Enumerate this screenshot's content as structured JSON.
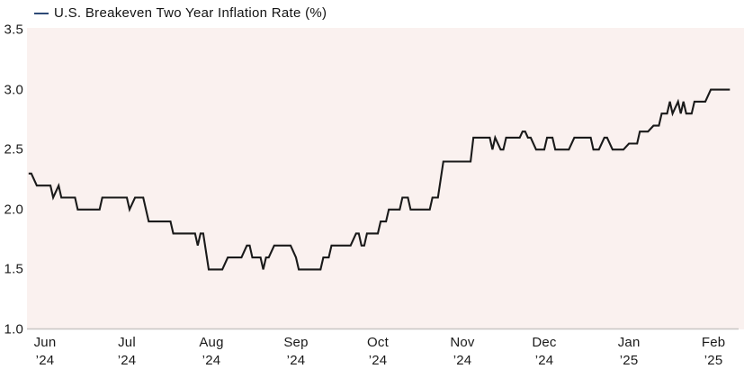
{
  "legend": {
    "label": "U.S. Breakeven Two Year Inflation Rate (%)"
  },
  "colors": {
    "line": "#1a1a1a",
    "legend_dash": "#2c4a76",
    "plot_bg": "#faf1ef",
    "baseline": "#c9c6c4",
    "text": "#1a1a1a",
    "page_bg": "#ffffff"
  },
  "chart_data": {
    "type": "line",
    "title": "U.S. Breakeven Two Year Inflation Rate (%)",
    "series_name": "U.S. Breakeven Two Year Inflation Rate (%)",
    "xlabel": "",
    "ylabel": "",
    "ylim": [
      1.0,
      3.5
    ],
    "yticks": [
      3.5,
      3.0,
      2.5,
      2.0,
      1.5,
      1.0
    ],
    "grid": false,
    "legend_position": "top-left",
    "line_style": "daily step-like line",
    "x_range": [
      "2024-05-26",
      "2025-02-07"
    ],
    "xticks": [
      {
        "month": "Jun",
        "year": "’24",
        "date": "2024-06-01"
      },
      {
        "month": "Jul",
        "year": "’24",
        "date": "2024-07-01"
      },
      {
        "month": "Aug",
        "year": "’24",
        "date": "2024-08-01"
      },
      {
        "month": "Sep",
        "year": "’24",
        "date": "2024-09-01"
      },
      {
        "month": "Oct",
        "year": "’24",
        "date": "2024-10-01"
      },
      {
        "month": "Nov",
        "year": "’24",
        "date": "2024-11-01"
      },
      {
        "month": "Dec",
        "year": "’24",
        "date": "2024-12-01"
      },
      {
        "month": "Jan",
        "year": "’25",
        "date": "2025-01-01"
      },
      {
        "month": "Feb",
        "year": "’25",
        "date": "2025-02-01"
      }
    ],
    "points": [
      [
        "2024-05-26",
        2.3
      ],
      [
        "2024-05-27",
        2.3
      ],
      [
        "2024-05-29",
        2.2
      ],
      [
        "2024-06-03",
        2.2
      ],
      [
        "2024-06-04",
        2.1
      ],
      [
        "2024-06-06",
        2.2
      ],
      [
        "2024-06-07",
        2.1
      ],
      [
        "2024-06-12",
        2.1
      ],
      [
        "2024-06-13",
        2.0
      ],
      [
        "2024-06-21",
        2.0
      ],
      [
        "2024-06-22",
        2.1
      ],
      [
        "2024-07-01",
        2.1
      ],
      [
        "2024-07-02",
        2.0
      ],
      [
        "2024-07-04",
        2.1
      ],
      [
        "2024-07-07",
        2.1
      ],
      [
        "2024-07-09",
        1.9
      ],
      [
        "2024-07-17",
        1.9
      ],
      [
        "2024-07-18",
        1.8
      ],
      [
        "2024-07-26",
        1.8
      ],
      [
        "2024-07-27",
        1.7
      ],
      [
        "2024-07-28",
        1.8
      ],
      [
        "2024-07-29",
        1.8
      ],
      [
        "2024-07-31",
        1.5
      ],
      [
        "2024-08-05",
        1.5
      ],
      [
        "2024-08-07",
        1.6
      ],
      [
        "2024-08-12",
        1.6
      ],
      [
        "2024-08-14",
        1.7
      ],
      [
        "2024-08-15",
        1.7
      ],
      [
        "2024-08-16",
        1.6
      ],
      [
        "2024-08-19",
        1.6
      ],
      [
        "2024-08-20",
        1.5
      ],
      [
        "2024-08-21",
        1.6
      ],
      [
        "2024-08-22",
        1.6
      ],
      [
        "2024-08-24",
        1.7
      ],
      [
        "2024-08-30",
        1.7
      ],
      [
        "2024-09-01",
        1.6
      ],
      [
        "2024-09-02",
        1.5
      ],
      [
        "2024-09-10",
        1.5
      ],
      [
        "2024-09-11",
        1.6
      ],
      [
        "2024-09-13",
        1.6
      ],
      [
        "2024-09-14",
        1.7
      ],
      [
        "2024-09-21",
        1.7
      ],
      [
        "2024-09-23",
        1.8
      ],
      [
        "2024-09-24",
        1.8
      ],
      [
        "2024-09-25",
        1.7
      ],
      [
        "2024-09-26",
        1.7
      ],
      [
        "2024-09-27",
        1.8
      ],
      [
        "2024-10-01",
        1.8
      ],
      [
        "2024-10-02",
        1.9
      ],
      [
        "2024-10-04",
        1.9
      ],
      [
        "2024-10-05",
        2.0
      ],
      [
        "2024-10-09",
        2.0
      ],
      [
        "2024-10-10",
        2.1
      ],
      [
        "2024-10-12",
        2.1
      ],
      [
        "2024-10-13",
        2.0
      ],
      [
        "2024-10-20",
        2.0
      ],
      [
        "2024-10-21",
        2.1
      ],
      [
        "2024-10-23",
        2.1
      ],
      [
        "2024-10-25",
        2.4
      ],
      [
        "2024-11-04",
        2.4
      ],
      [
        "2024-11-05",
        2.6
      ],
      [
        "2024-11-11",
        2.6
      ],
      [
        "2024-11-12",
        2.5
      ],
      [
        "2024-11-13",
        2.6
      ],
      [
        "2024-11-15",
        2.5
      ],
      [
        "2024-11-16",
        2.5
      ],
      [
        "2024-11-17",
        2.6
      ],
      [
        "2024-11-22",
        2.6
      ],
      [
        "2024-11-23",
        2.65
      ],
      [
        "2024-11-24",
        2.65
      ],
      [
        "2024-11-25",
        2.6
      ],
      [
        "2024-11-26",
        2.6
      ],
      [
        "2024-11-28",
        2.5
      ],
      [
        "2024-12-01",
        2.5
      ],
      [
        "2024-12-02",
        2.6
      ],
      [
        "2024-12-04",
        2.6
      ],
      [
        "2024-12-05",
        2.5
      ],
      [
        "2024-12-10",
        2.5
      ],
      [
        "2024-12-12",
        2.6
      ],
      [
        "2024-12-18",
        2.6
      ],
      [
        "2024-12-19",
        2.5
      ],
      [
        "2024-12-21",
        2.5
      ],
      [
        "2024-12-23",
        2.6
      ],
      [
        "2024-12-24",
        2.6
      ],
      [
        "2024-12-26",
        2.5
      ],
      [
        "2024-12-30",
        2.5
      ],
      [
        "2025-01-01",
        2.55
      ],
      [
        "2025-01-04",
        2.55
      ],
      [
        "2025-01-05",
        2.65
      ],
      [
        "2025-01-08",
        2.65
      ],
      [
        "2025-01-10",
        2.7
      ],
      [
        "2025-01-12",
        2.7
      ],
      [
        "2025-01-13",
        2.8
      ],
      [
        "2025-01-15",
        2.8
      ],
      [
        "2025-01-16",
        2.9
      ],
      [
        "2025-01-17",
        2.8
      ],
      [
        "2025-01-19",
        2.9
      ],
      [
        "2025-01-20",
        2.8
      ],
      [
        "2025-01-21",
        2.9
      ],
      [
        "2025-01-22",
        2.8
      ],
      [
        "2025-01-24",
        2.8
      ],
      [
        "2025-01-25",
        2.9
      ],
      [
        "2025-01-29",
        2.9
      ],
      [
        "2025-01-31",
        3.0
      ],
      [
        "2025-02-07",
        3.0
      ]
    ]
  }
}
